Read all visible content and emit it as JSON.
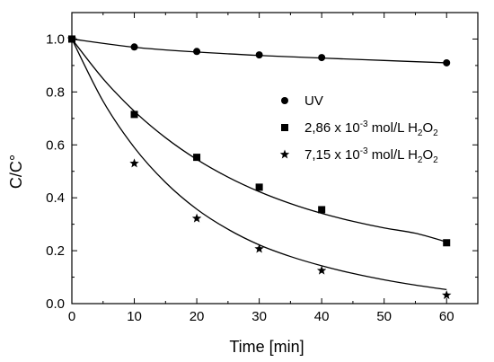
{
  "chart_data": {
    "type": "scatter",
    "xlabel": "Time [min]",
    "ylabel": "C/C°",
    "xlim": [
      0,
      65
    ],
    "ylim": [
      0,
      1.1
    ],
    "xticks": [
      0,
      10,
      20,
      30,
      40,
      50,
      60
    ],
    "xtick_labels": [
      "0",
      "10",
      "20",
      "30",
      "40",
      "50",
      "60"
    ],
    "yticks": [
      0.0,
      0.2,
      0.4,
      0.6,
      0.8,
      1.0
    ],
    "ytick_labels": [
      "0.0",
      "0.2",
      "0.4",
      "0.6",
      "0.8",
      "1.0"
    ],
    "grid": false,
    "legend_position": "right",
    "series": [
      {
        "name": "UV",
        "legend_parts": {
          "main": "UV"
        },
        "marker": "circle",
        "x": [
          0,
          10,
          20,
          30,
          40,
          60
        ],
        "y": [
          1.0,
          0.97,
          0.953,
          0.94,
          0.93,
          0.91
        ],
        "fit_x": [
          0,
          10,
          20,
          30,
          40,
          50,
          60
        ],
        "fit_y": [
          1.0,
          0.969,
          0.951,
          0.938,
          0.928,
          0.919,
          0.91
        ]
      },
      {
        "name": "2,86 x 10-3 mol/L H2O2",
        "legend_parts": {
          "main": "2,86 x 10",
          "sup": "-3",
          "mid": " mol/L H",
          "sub1": "2",
          "o": "O",
          "sub2": "2"
        },
        "marker": "square",
        "x": [
          0,
          10,
          20,
          30,
          40,
          60
        ],
        "y": [
          1.0,
          0.715,
          0.553,
          0.44,
          0.355,
          0.23
        ],
        "fit_x": [
          0,
          5,
          10,
          15,
          20,
          25,
          30,
          35,
          40,
          45,
          50,
          55,
          60
        ],
        "fit_y": [
          1.0,
          0.85,
          0.727,
          0.627,
          0.545,
          0.478,
          0.423,
          0.378,
          0.341,
          0.311,
          0.286,
          0.266,
          0.233
        ]
      },
      {
        "name": "7,15 x 10-3 mol/L H2O2",
        "legend_parts": {
          "main": "7,15 x 10",
          "sup": "-3",
          "mid": " mol/L H",
          "sub1": "2",
          "o": "O",
          "sub2": "2"
        },
        "marker": "star",
        "x": [
          0,
          10,
          20,
          30,
          40,
          60
        ],
        "y": [
          1.0,
          0.53,
          0.322,
          0.207,
          0.125,
          0.032
        ],
        "fit_x": [
          0,
          5,
          10,
          15,
          20,
          25,
          30,
          35,
          40,
          45,
          50,
          55,
          60
        ],
        "fit_y": [
          1.0,
          0.765,
          0.59,
          0.458,
          0.357,
          0.281,
          0.222,
          0.178,
          0.143,
          0.114,
          0.09,
          0.07,
          0.053
        ]
      }
    ]
  }
}
